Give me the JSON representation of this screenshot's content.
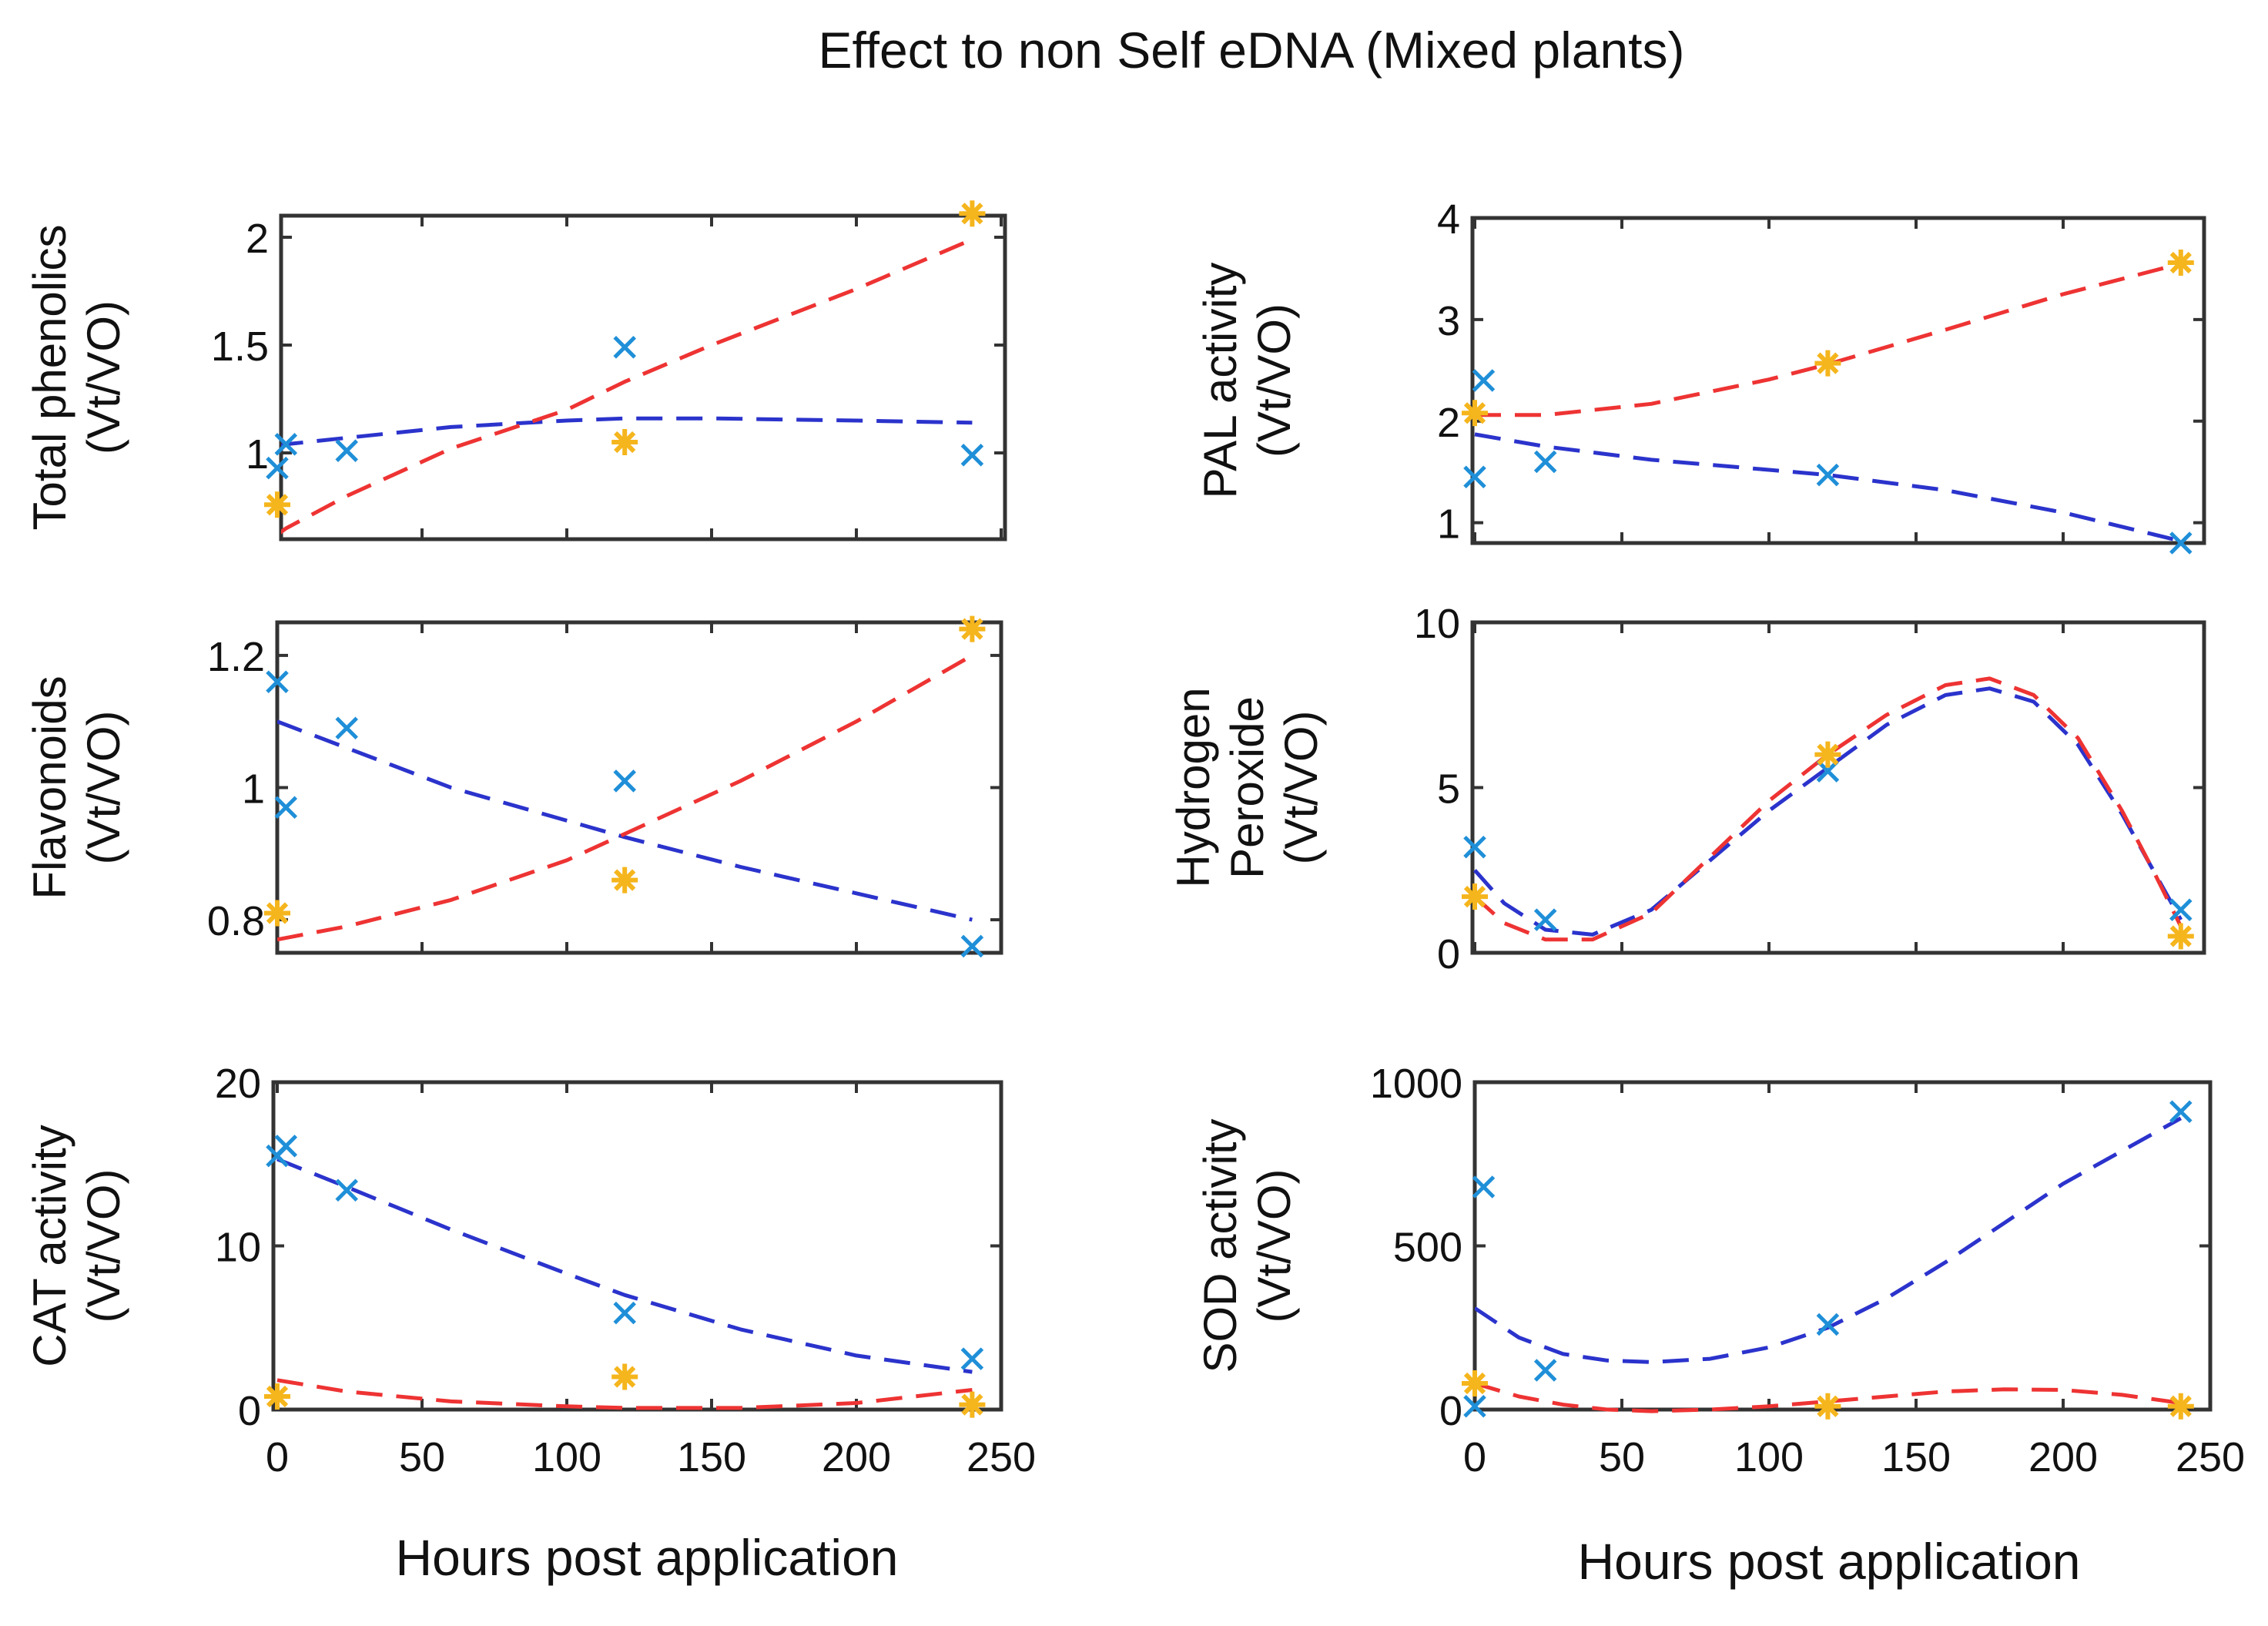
{
  "figure": {
    "title": "Effect to non Self eDNA (Mixed plants)",
    "xlabel": "Hours post application"
  },
  "colors": {
    "blue_fit": "#2b33cc",
    "red_fit": "#ee3333",
    "blue_marker": "#1f8fd8",
    "orange_marker": "#f5b51c",
    "axes": "#333333"
  },
  "chart_data": [
    {
      "type": "scatter",
      "ylabel_lines": [
        "Total phenolics",
        "(Vt/VO)"
      ],
      "xlim": [
        0,
        240
      ],
      "ylim": [
        0.6,
        2.1
      ],
      "x_ticks": [],
      "y_ticks": [
        1,
        1.5,
        2
      ],
      "series": [
        {
          "marker": "x",
          "x": [
            0,
            3,
            24,
            120,
            240
          ],
          "y": [
            0.93,
            1.04,
            1.01,
            1.49,
            0.99
          ]
        },
        {
          "marker": "star",
          "x": [
            0,
            120,
            240
          ],
          "y": [
            0.76,
            1.05,
            2.11
          ]
        }
      ],
      "fits": [
        {
          "style": "dashed",
          "x": [
            0,
            3,
            24,
            60,
            100,
            120,
            150,
            200,
            240
          ],
          "y": [
            1.03,
            1.04,
            1.07,
            1.12,
            1.15,
            1.16,
            1.16,
            1.15,
            1.14
          ]
        },
        {
          "style": "dashed",
          "x": [
            0,
            3,
            24,
            60,
            100,
            120,
            150,
            200,
            240
          ],
          "y": [
            0.62,
            0.65,
            0.8,
            1.02,
            1.2,
            1.33,
            1.5,
            1.76,
            1.99
          ]
        }
      ]
    },
    {
      "type": "scatter",
      "ylabel_lines": [
        "PAL activity",
        "(Vt/VO)"
      ],
      "xlim": [
        0,
        240
      ],
      "ylim": [
        0.8,
        4
      ],
      "x_ticks": [],
      "y_ticks": [
        1,
        2,
        3,
        4
      ],
      "series": [
        {
          "marker": "x",
          "x": [
            0,
            3,
            24,
            120,
            240
          ],
          "y": [
            1.45,
            2.4,
            1.6,
            1.47,
            0.8
          ]
        },
        {
          "marker": "star",
          "x": [
            0,
            120,
            240
          ],
          "y": [
            2.08,
            2.57,
            3.56
          ]
        }
      ],
      "fits": [
        {
          "style": "dashed",
          "x": [
            0,
            24,
            60,
            100,
            120,
            160,
            200,
            240
          ],
          "y": [
            1.87,
            1.75,
            1.62,
            1.52,
            1.47,
            1.32,
            1.1,
            0.82
          ]
        },
        {
          "style": "dashed",
          "x": [
            0,
            24,
            60,
            100,
            120,
            160,
            200,
            240
          ],
          "y": [
            2.06,
            2.06,
            2.17,
            2.41,
            2.56,
            2.9,
            3.25,
            3.55
          ]
        }
      ]
    },
    {
      "type": "scatter",
      "ylabel_lines": [
        "Flavonoids",
        "(Vt/VO)"
      ],
      "xlim": [
        0,
        240
      ],
      "ylim": [
        0.75,
        1.25
      ],
      "x_ticks": [],
      "y_ticks": [
        0.8,
        1,
        1.2
      ],
      "series": [
        {
          "marker": "x",
          "x": [
            0,
            3,
            24,
            120,
            240
          ],
          "y": [
            1.16,
            0.97,
            1.09,
            1.01,
            0.76
          ]
        },
        {
          "marker": "star",
          "x": [
            0,
            120,
            240
          ],
          "y": [
            0.81,
            0.86,
            1.24
          ]
        }
      ],
      "fits": [
        {
          "style": "dashed",
          "x": [
            0,
            24,
            60,
            100,
            120,
            160,
            200,
            240
          ],
          "y": [
            1.1,
            1.06,
            1.0,
            0.95,
            0.925,
            0.88,
            0.84,
            0.8
          ]
        },
        {
          "style": "dashed",
          "x": [
            0,
            24,
            60,
            100,
            120,
            160,
            200,
            240
          ],
          "y": [
            0.77,
            0.79,
            0.83,
            0.89,
            0.93,
            1.01,
            1.1,
            1.2
          ]
        }
      ]
    },
    {
      "type": "scatter",
      "ylabel_lines": [
        "Hydrogen",
        "Peroxide",
        "(Vt/VO)"
      ],
      "xlim": [
        0,
        240
      ],
      "ylim": [
        0,
        10
      ],
      "x_ticks": [],
      "y_ticks": [
        0,
        5,
        10
      ],
      "series": [
        {
          "marker": "x",
          "x": [
            0,
            24,
            120,
            240
          ],
          "y": [
            3.2,
            1.0,
            5.5,
            1.3
          ]
        },
        {
          "marker": "star",
          "x": [
            0,
            120,
            240
          ],
          "y": [
            1.7,
            6.0,
            0.5
          ]
        }
      ],
      "fits": [
        {
          "style": "dashed",
          "x": [
            0,
            10,
            24,
            40,
            60,
            80,
            100,
            120,
            140,
            160,
            175,
            190,
            205,
            220,
            230,
            240
          ],
          "y": [
            2.5,
            1.5,
            0.7,
            0.55,
            1.3,
            2.8,
            4.3,
            5.6,
            6.9,
            7.8,
            8.0,
            7.6,
            6.3,
            4.2,
            2.6,
            1.0
          ]
        },
        {
          "style": "dashed",
          "x": [
            0,
            10,
            24,
            40,
            60,
            80,
            100,
            120,
            140,
            160,
            175,
            190,
            205,
            220,
            230,
            240
          ],
          "y": [
            1.7,
            0.9,
            0.4,
            0.4,
            1.2,
            2.9,
            4.6,
            6.0,
            7.2,
            8.1,
            8.3,
            7.8,
            6.5,
            4.3,
            2.6,
            0.8
          ]
        }
      ]
    },
    {
      "type": "scatter",
      "ylabel_lines": [
        "CAT activity",
        "(Vt/VO)"
      ],
      "xlim": [
        0,
        240
      ],
      "ylim": [
        0,
        20
      ],
      "x_ticks": [
        0,
        50,
        100,
        150,
        200,
        250
      ],
      "y_ticks": [
        0,
        10,
        20
      ],
      "series": [
        {
          "marker": "x",
          "x": [
            0,
            3,
            24,
            120,
            240
          ],
          "y": [
            15.5,
            16.1,
            13.4,
            5.9,
            3.1
          ]
        },
        {
          "marker": "star",
          "x": [
            0,
            120,
            240
          ],
          "y": [
            0.8,
            2.0,
            0.3
          ]
        }
      ],
      "fits": [
        {
          "style": "dashed",
          "x": [
            0,
            24,
            60,
            100,
            120,
            160,
            200,
            240
          ],
          "y": [
            15.3,
            13.6,
            11.0,
            8.3,
            7.0,
            4.9,
            3.3,
            2.3
          ]
        },
        {
          "style": "dashed",
          "x": [
            0,
            24,
            60,
            100,
            120,
            160,
            200,
            240
          ],
          "y": [
            1.8,
            1.1,
            0.5,
            0.2,
            0.1,
            0.1,
            0.4,
            1.2
          ]
        }
      ]
    },
    {
      "type": "scatter",
      "ylabel_lines": [
        "SOD activity",
        "(Vt/VO)"
      ],
      "xlim": [
        0,
        240
      ],
      "ylim": [
        0,
        1000
      ],
      "x_ticks": [
        0,
        50,
        100,
        150,
        200,
        250
      ],
      "y_ticks": [
        0,
        500,
        1000
      ],
      "series": [
        {
          "marker": "x",
          "x": [
            0,
            3,
            24,
            120,
            240
          ],
          "y": [
            10,
            680,
            120,
            260,
            910
          ]
        },
        {
          "marker": "star",
          "x": [
            0,
            120,
            240
          ],
          "y": [
            80,
            10,
            10
          ]
        }
      ],
      "fits": [
        {
          "style": "dashed",
          "x": [
            0,
            15,
            30,
            45,
            60,
            80,
            100,
            120,
            140,
            160,
            180,
            200,
            220,
            240
          ],
          "y": [
            310,
            220,
            170,
            150,
            145,
            155,
            190,
            250,
            340,
            450,
            570,
            690,
            790,
            890
          ]
        },
        {
          "style": "dashed",
          "x": [
            0,
            15,
            30,
            45,
            60,
            80,
            100,
            120,
            140,
            160,
            180,
            200,
            220,
            240
          ],
          "y": [
            80,
            40,
            15,
            0,
            -5,
            0,
            10,
            25,
            40,
            55,
            62,
            60,
            45,
            20
          ]
        }
      ]
    }
  ]
}
